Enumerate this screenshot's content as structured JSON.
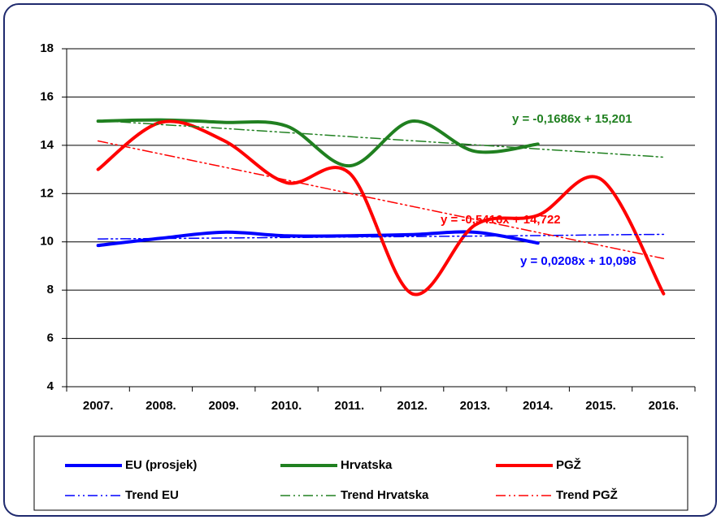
{
  "chart_data": {
    "type": "line",
    "categories": [
      "2007.",
      "2008.",
      "2009.",
      "2010.",
      "2011.",
      "2012.",
      "2013.",
      "2014.",
      "2015.",
      "2016."
    ],
    "ylim": [
      4,
      18
    ],
    "yticks": [
      4,
      6,
      8,
      10,
      12,
      14,
      16,
      18
    ],
    "grid": true,
    "series": [
      {
        "name": "EU (prosjek)",
        "color": "#0000ff",
        "style": "solid",
        "values": [
          9.85,
          10.15,
          10.4,
          10.25,
          10.25,
          10.3,
          10.4,
          9.95,
          null,
          null
        ]
      },
      {
        "name": "Hrvatska",
        "color": "#208020",
        "style": "solid",
        "values": [
          15.0,
          15.05,
          14.95,
          14.8,
          13.15,
          15.0,
          13.75,
          14.05,
          null,
          null
        ]
      },
      {
        "name": "PGŽ",
        "color": "#ff0000",
        "style": "solid",
        "values": [
          13.0,
          14.95,
          14.2,
          12.45,
          12.85,
          7.85,
          10.7,
          11.1,
          12.6,
          7.85
        ]
      },
      {
        "name": "Trend EU",
        "color": "#0000ff",
        "style": "dashdot",
        "values": [
          10.12,
          10.14,
          10.16,
          10.18,
          10.2,
          10.22,
          10.24,
          10.26,
          10.29,
          10.31
        ]
      },
      {
        "name": "Trend Hrvatska",
        "color": "#208020",
        "style": "dashdot",
        "values": [
          15.03,
          14.86,
          14.7,
          14.53,
          14.36,
          14.19,
          14.02,
          13.85,
          13.68,
          13.51
        ]
      },
      {
        "name": "Trend PGŽ",
        "color": "#ff0000",
        "style": "dashdot",
        "values": [
          14.18,
          13.64,
          13.1,
          12.56,
          12.01,
          11.47,
          10.93,
          10.39,
          9.85,
          9.31
        ]
      }
    ],
    "annotations": [
      {
        "text": "y = -0,1686x + 15,201",
        "color": "#208020"
      },
      {
        "text": "y = -0,5416x + 14,722",
        "color": "#ff0000"
      },
      {
        "text": "y = 0,0208x + 10,098",
        "color": "#0000ff"
      }
    ]
  }
}
